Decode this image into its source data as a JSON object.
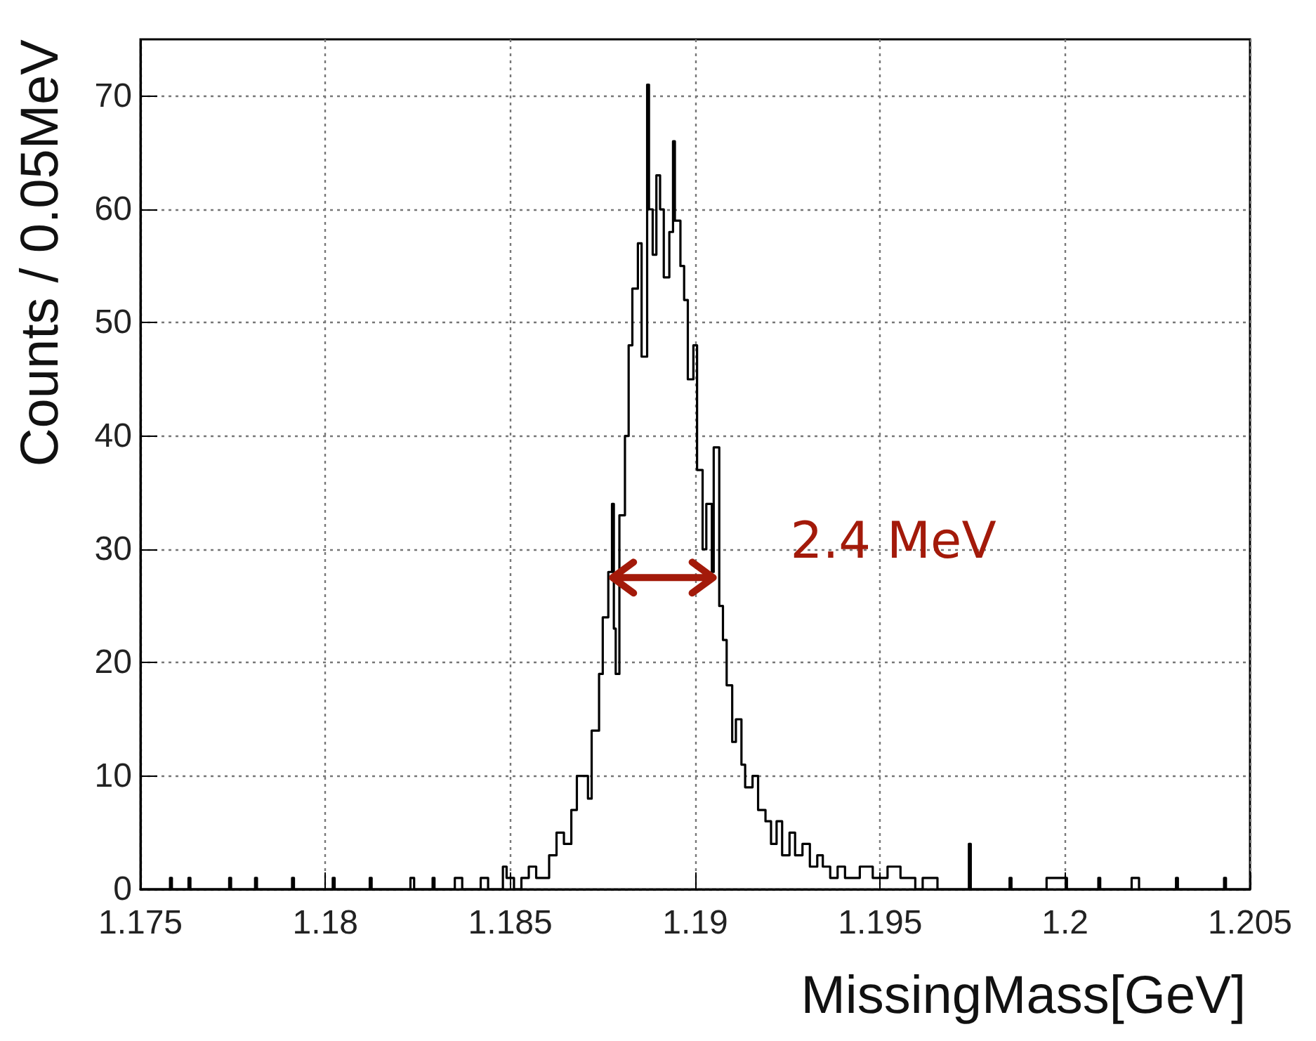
{
  "chart_data": {
    "type": "step",
    "xlabel": "MissingMass[GeV]",
    "ylabel": "Counts / 0.05MeV",
    "xlim": [
      1.175,
      1.205
    ],
    "xticks": [
      1.175,
      1.18,
      1.185,
      1.19,
      1.195,
      1.2,
      1.205
    ],
    "ylim": [
      0,
      75
    ],
    "yticks": [
      0,
      10,
      20,
      30,
      40,
      50,
      60,
      70
    ],
    "grid": true,
    "annotations": [
      {
        "text": "2.4 MeV",
        "x": 1.1906,
        "y": 27.5
      }
    ],
    "series": [
      {
        "color": "#000000",
        "x": [
          1.175,
          1.1758,
          1.17585,
          1.1763,
          1.17635,
          1.1774,
          1.17745,
          1.1781,
          1.17815,
          1.1791,
          1.17915,
          1.1802,
          1.18025,
          1.1812,
          1.18125,
          1.1823,
          1.1824,
          1.1829,
          1.18295,
          1.1835,
          1.1837,
          1.1842,
          1.1844,
          1.1848,
          1.1849,
          1.1851,
          1.1853,
          1.1855,
          1.1857,
          1.18605,
          1.18625,
          1.18645,
          1.18665,
          1.1868,
          1.1871,
          1.1872,
          1.1874,
          1.1875,
          1.18765,
          1.18775,
          1.1878,
          1.18785,
          1.18795,
          1.1881,
          1.1882,
          1.1883,
          1.18845,
          1.18855,
          1.1887,
          1.18875,
          1.18885,
          1.18895,
          1.18905,
          1.18915,
          1.1893,
          1.1894,
          1.18945,
          1.1896,
          1.1897,
          1.1898,
          1.18995,
          1.19005,
          1.1902,
          1.1903,
          1.19045,
          1.1905,
          1.19065,
          1.19075,
          1.19085,
          1.191,
          1.1911,
          1.19125,
          1.19135,
          1.19155,
          1.1917,
          1.1919,
          1.19205,
          1.1922,
          1.19235,
          1.19255,
          1.1927,
          1.1929,
          1.1931,
          1.1933,
          1.19345,
          1.19365,
          1.19385,
          1.19405,
          1.19445,
          1.1948,
          1.1952,
          1.19555,
          1.19595,
          1.19615,
          1.19655,
          1.1974,
          1.19745,
          1.1985,
          1.19855,
          1.1995,
          1.20005,
          1.2009,
          1.20095,
          1.2018,
          1.202,
          1.203,
          1.20305,
          1.2043,
          1.20435,
          1.205
        ],
        "values": [
          0,
          1,
          0,
          1,
          0,
          1,
          0,
          1,
          0,
          1,
          0,
          1,
          0,
          1,
          0,
          1,
          0,
          1,
          0,
          1,
          0,
          1,
          0,
          2,
          1,
          0,
          1,
          2,
          1,
          3,
          5,
          4,
          7,
          10,
          8,
          14,
          19,
          24,
          28,
          34,
          23,
          19,
          33,
          40,
          48,
          53,
          57,
          47,
          71,
          60,
          56,
          63,
          60,
          54,
          58,
          66,
          59,
          55,
          52,
          45,
          48,
          37,
          30,
          34,
          28,
          39,
          25,
          22,
          18,
          13,
          15,
          11,
          9,
          10,
          7,
          6,
          4,
          6,
          3,
          5,
          3,
          4,
          2,
          3,
          2,
          1,
          2,
          1,
          2,
          1,
          2,
          1,
          0,
          1,
          0,
          4,
          0,
          1,
          0,
          1,
          0,
          1,
          0,
          1,
          0,
          1,
          0,
          1,
          0,
          0
        ]
      }
    ]
  }
}
